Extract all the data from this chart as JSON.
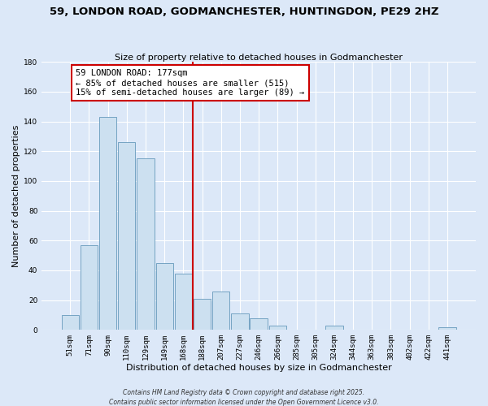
{
  "title": "59, LONDON ROAD, GODMANCHESTER, HUNTINGDON, PE29 2HZ",
  "subtitle": "Size of property relative to detached houses in Godmanchester",
  "xlabel": "Distribution of detached houses by size in Godmanchester",
  "ylabel": "Number of detached properties",
  "bar_labels": [
    "51sqm",
    "71sqm",
    "90sqm",
    "110sqm",
    "129sqm",
    "149sqm",
    "168sqm",
    "188sqm",
    "207sqm",
    "227sqm",
    "246sqm",
    "266sqm",
    "285sqm",
    "305sqm",
    "324sqm",
    "344sqm",
    "363sqm",
    "383sqm",
    "402sqm",
    "422sqm",
    "441sqm"
  ],
  "bar_values": [
    10,
    57,
    143,
    126,
    115,
    45,
    38,
    21,
    26,
    11,
    8,
    3,
    0,
    0,
    3,
    0,
    0,
    0,
    0,
    0,
    2
  ],
  "bar_color": "#cce0f0",
  "bar_edge_color": "#6699bb",
  "property_line_x": 7.0,
  "property_line_color": "#cc0000",
  "annotation_title": "59 LONDON ROAD: 177sqm",
  "annotation_line1": "← 85% of detached houses are smaller (515)",
  "annotation_line2": "15% of semi-detached houses are larger (89) →",
  "annotation_box_facecolor": "#ffffff",
  "annotation_box_edgecolor": "#cc0000",
  "ylim": [
    0,
    180
  ],
  "yticks": [
    0,
    20,
    40,
    60,
    80,
    100,
    120,
    140,
    160,
    180
  ],
  "background_color": "#dce8f8",
  "grid_color": "#ffffff",
  "footer_line1": "Contains HM Land Registry data © Crown copyright and database right 2025.",
  "footer_line2": "Contains public sector information licensed under the Open Government Licence v3.0.",
  "title_fontsize": 9.5,
  "subtitle_fontsize": 8,
  "axis_label_fontsize": 8,
  "tick_fontsize": 6.5,
  "annotation_fontsize": 7.5,
  "footer_fontsize": 5.5
}
